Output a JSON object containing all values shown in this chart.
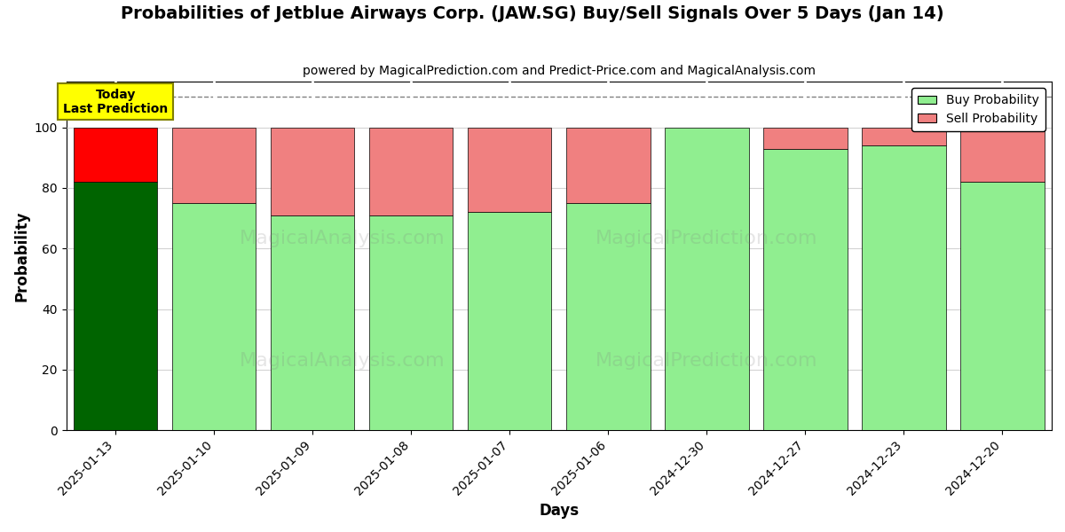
{
  "title": "Probabilities of Jetblue Airways Corp. (JAW.SG) Buy/Sell Signals Over 5 Days (Jan 14)",
  "subtitle": "powered by MagicalPrediction.com and Predict-Price.com and MagicalAnalysis.com",
  "xlabel": "Days",
  "ylabel": "Probability",
  "categories": [
    "2025-01-13",
    "2025-01-10",
    "2025-01-09",
    "2025-01-08",
    "2025-01-07",
    "2025-01-06",
    "2024-12-30",
    "2024-12-27",
    "2024-12-23",
    "2024-12-20"
  ],
  "buy_values": [
    82,
    75,
    71,
    71,
    72,
    75,
    100,
    93,
    94,
    82
  ],
  "sell_values": [
    18,
    25,
    29,
    29,
    28,
    25,
    0,
    7,
    6,
    18
  ],
  "today_buy_color": "#006400",
  "today_sell_color": "#FF0000",
  "buy_color": "#90EE90",
  "sell_color": "#F08080",
  "today_label_bg": "#FFFF00",
  "today_label_text": "Today\nLast Prediction",
  "ylim_max": 115,
  "yticks": [
    0,
    20,
    40,
    60,
    80,
    100
  ],
  "dashed_line_y": 110,
  "legend_buy": "Buy Probability",
  "legend_sell": "Sell Probability",
  "bar_width": 0.85,
  "edgecolor": "black",
  "edgewidth": 0.5,
  "watermark1_text": "MagicalAnalysis.com",
  "watermark2_text": "MagicalPrediction.com"
}
